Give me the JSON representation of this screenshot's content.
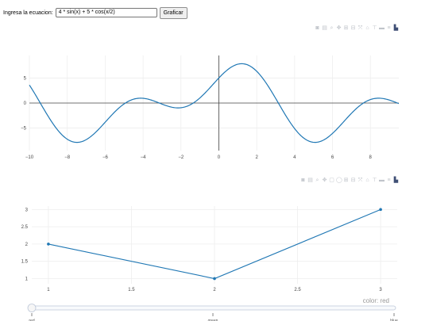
{
  "form": {
    "label": "Ingresa la ecuacion:",
    "equation_value": "4 * sin(x) + 5 * cos(x/2)",
    "submit_label": "Graficar"
  },
  "modebar1": [
    "camera-icon",
    "save-icon",
    "zoom-icon",
    "pan-icon",
    "zoom-in-icon",
    "zoom-out-icon",
    "autoscale-icon",
    "home-icon",
    "spike-lines-icon",
    "hover-closest-icon",
    "hover-compare-icon",
    "plotly-logo-icon"
  ],
  "modebar2": [
    "camera-icon",
    "save-icon",
    "zoom-icon",
    "pan-icon",
    "box-select-icon",
    "lasso-select-icon",
    "zoom-in-icon",
    "zoom-out-icon",
    "autoscale-icon",
    "home-icon",
    "spike-lines-icon",
    "hover-closest-icon",
    "hover-compare-icon",
    "plotly-logo-icon"
  ],
  "chart_data": [
    {
      "type": "line",
      "expression": "4 * sin(x) + 5 * cos(x/2)",
      "x_range": [
        -10,
        9.5
      ],
      "xlim": [
        -10,
        9.5
      ],
      "ylim": [
        -9.5,
        9.5
      ],
      "x_ticks": [
        -10,
        -8,
        -6,
        -4,
        -2,
        0,
        2,
        4,
        6,
        8
      ],
      "x_tick_labels": [
        "−10",
        "−8",
        "−6",
        "−4",
        "−2",
        "0",
        "2",
        "4",
        "6",
        "8"
      ],
      "y_ticks": [
        -5,
        0,
        5
      ],
      "y_tick_labels": [
        "−5",
        "0",
        "5"
      ],
      "grid": true,
      "line_color": "#1f77b4"
    },
    {
      "type": "line",
      "x": [
        1,
        2,
        3
      ],
      "y": [
        2,
        1,
        3
      ],
      "markers": true,
      "xlim": [
        0.9,
        3.1
      ],
      "ylim": [
        0.85,
        3.1
      ],
      "x_ticks": [
        1,
        1.5,
        2,
        2.5,
        3
      ],
      "x_tick_labels": [
        "1",
        "1.5",
        "2",
        "2.5",
        "3"
      ],
      "y_ticks": [
        1,
        1.5,
        2,
        2.5,
        3
      ],
      "y_tick_labels": [
        "1",
        "1.5",
        "2",
        "2.5",
        "3"
      ],
      "grid": true,
      "line_color": "#1f77b4",
      "slider": {
        "current_label": "color: red",
        "steps": [
          "red",
          "green",
          "blue"
        ],
        "active_index": 0
      }
    }
  ]
}
